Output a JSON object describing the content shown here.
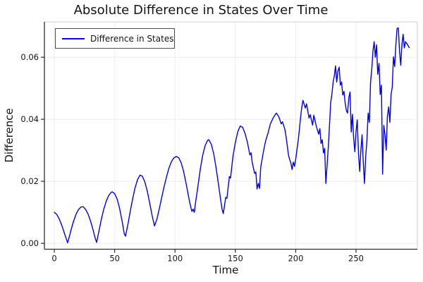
{
  "chart_data": {
    "type": "line",
    "title": "Absolute Difference in States Over Time",
    "xlabel": "Time",
    "ylabel": "Difference",
    "legend": {
      "position": "top-left",
      "label": "Difference in States"
    },
    "grid": true,
    "line_color": "#0000ee",
    "grid_color": "#ebebeb",
    "frame_color": "#cfcfcf",
    "spine_color": "#2e2e2e",
    "text_color": "#141414",
    "xlim": [
      -8.2,
      300.8
    ],
    "ylim": [
      -0.0019,
      0.0714
    ],
    "xticks": [
      0,
      50,
      100,
      150,
      200,
      250
    ],
    "xtick_labels": [
      "0",
      "50",
      "100",
      "150",
      "200",
      "250"
    ],
    "yticks": [
      0,
      0.02,
      0.04,
      0.06
    ],
    "ytick_labels": [
      "0.00",
      "0.02",
      "0.04",
      "0.06"
    ],
    "series": [
      {
        "name": "Difference in States",
        "points": [
          [
            0,
            0.01
          ],
          [
            2,
            0.0093
          ],
          [
            4,
            0.0079
          ],
          [
            6,
            0.006
          ],
          [
            8,
            0.0037
          ],
          [
            10,
            0.0013
          ],
          [
            11,
            0.0002
          ],
          [
            12,
            0.0015
          ],
          [
            14,
            0.0045
          ],
          [
            16,
            0.0072
          ],
          [
            18,
            0.0094
          ],
          [
            20,
            0.0109
          ],
          [
            22,
            0.0117
          ],
          [
            24,
            0.0118
          ],
          [
            26,
            0.0109
          ],
          [
            28,
            0.0094
          ],
          [
            30,
            0.0072
          ],
          [
            32,
            0.0045
          ],
          [
            34,
            0.0015
          ],
          [
            35,
            0.0003
          ],
          [
            37,
            0.004
          ],
          [
            39,
            0.0078
          ],
          [
            41,
            0.011
          ],
          [
            43,
            0.0136
          ],
          [
            45,
            0.0154
          ],
          [
            47,
            0.0164
          ],
          [
            48,
            0.0166
          ],
          [
            50,
            0.016
          ],
          [
            52,
            0.0143
          ],
          [
            54,
            0.0114
          ],
          [
            56,
            0.0075
          ],
          [
            58,
            0.003
          ],
          [
            59,
            0.0023
          ],
          [
            61,
            0.0062
          ],
          [
            63,
            0.0105
          ],
          [
            65,
            0.0145
          ],
          [
            67,
            0.018
          ],
          [
            69,
            0.0206
          ],
          [
            71,
            0.022
          ],
          [
            73,
            0.0216
          ],
          [
            75,
            0.0198
          ],
          [
            77,
            0.0168
          ],
          [
            79,
            0.013
          ],
          [
            81,
            0.009
          ],
          [
            83,
            0.0056
          ],
          [
            85,
            0.0078
          ],
          [
            87,
            0.0112
          ],
          [
            89,
            0.0148
          ],
          [
            91,
            0.0183
          ],
          [
            93,
            0.0215
          ],
          [
            95,
            0.0243
          ],
          [
            97,
            0.0263
          ],
          [
            99,
            0.0275
          ],
          [
            101,
            0.028
          ],
          [
            103,
            0.0276
          ],
          [
            105,
            0.0261
          ],
          [
            107,
            0.0234
          ],
          [
            109,
            0.0197
          ],
          [
            111,
            0.0155
          ],
          [
            112,
            0.0135
          ],
          [
            113,
            0.0118
          ],
          [
            114,
            0.0103
          ],
          [
            115,
            0.011
          ],
          [
            116,
            0.01
          ],
          [
            117,
            0.013
          ],
          [
            119,
            0.0185
          ],
          [
            121,
            0.024
          ],
          [
            123,
            0.0285
          ],
          [
            125,
            0.0315
          ],
          [
            127,
            0.0332
          ],
          [
            128,
            0.0334
          ],
          [
            130,
            0.032
          ],
          [
            132,
            0.029
          ],
          [
            134,
            0.0245
          ],
          [
            136,
            0.019
          ],
          [
            138,
            0.0135
          ],
          [
            139,
            0.011
          ],
          [
            140,
            0.0096
          ],
          [
            141,
            0.012
          ],
          [
            142,
            0.0148
          ],
          [
            143,
            0.0145
          ],
          [
            145,
            0.0215
          ],
          [
            146,
            0.021
          ],
          [
            148,
            0.028
          ],
          [
            150,
            0.0325
          ],
          [
            152,
            0.036
          ],
          [
            154,
            0.0378
          ],
          [
            156,
            0.0374
          ],
          [
            158,
            0.0355
          ],
          [
            160,
            0.0325
          ],
          [
            162,
            0.0285
          ],
          [
            163,
            0.0292
          ],
          [
            164,
            0.026
          ],
          [
            166,
            0.0225
          ],
          [
            167,
            0.023
          ],
          [
            168,
            0.0175
          ],
          [
            169,
            0.0193
          ],
          [
            170,
            0.0177
          ],
          [
            171,
            0.0245
          ],
          [
            173,
            0.029
          ],
          [
            175,
            0.0329
          ],
          [
            177,
            0.0355
          ],
          [
            179,
            0.0385
          ],
          [
            181,
            0.0402
          ],
          [
            183,
            0.0415
          ],
          [
            184,
            0.042
          ],
          [
            186,
            0.0408
          ],
          [
            188,
            0.0385
          ],
          [
            189,
            0.0392
          ],
          [
            191,
            0.0368
          ],
          [
            192,
            0.0345
          ],
          [
            194,
            0.0284
          ],
          [
            195,
            0.027
          ],
          [
            196,
            0.0258
          ],
          [
            197,
            0.0238
          ],
          [
            198,
            0.0262
          ],
          [
            199,
            0.0248
          ],
          [
            200,
            0.027
          ],
          [
            201,
            0.03
          ],
          [
            202,
            0.033
          ],
          [
            203,
            0.0365
          ],
          [
            204,
            0.0405
          ],
          [
            205,
            0.0438
          ],
          [
            206,
            0.0461
          ],
          [
            208,
            0.0436
          ],
          [
            209,
            0.045
          ],
          [
            211,
            0.0404
          ],
          [
            212,
            0.0415
          ],
          [
            214,
            0.0381
          ],
          [
            215,
            0.0413
          ],
          [
            217,
            0.0379
          ],
          [
            219,
            0.0352
          ],
          [
            220,
            0.037
          ],
          [
            221,
            0.0322
          ],
          [
            222,
            0.0334
          ],
          [
            223,
            0.0291
          ],
          [
            224,
            0.0306
          ],
          [
            225,
            0.0193
          ],
          [
            227,
            0.031
          ],
          [
            229,
            0.0455
          ],
          [
            230,
            0.0481
          ],
          [
            231,
            0.052
          ],
          [
            232,
            0.054
          ],
          [
            233,
            0.0572
          ],
          [
            234,
            0.052
          ],
          [
            235,
            0.0556
          ],
          [
            236,
            0.0568
          ],
          [
            237,
            0.051
          ],
          [
            238,
            0.052
          ],
          [
            239,
            0.0478
          ],
          [
            240,
            0.049
          ],
          [
            241,
            0.0452
          ],
          [
            242,
            0.0428
          ],
          [
            243,
            0.042
          ],
          [
            244,
            0.047
          ],
          [
            245,
            0.0488
          ],
          [
            246,
            0.0359
          ],
          [
            247,
            0.0416
          ],
          [
            248,
            0.034
          ],
          [
            249,
            0.0295
          ],
          [
            250,
            0.036
          ],
          [
            251,
            0.0398
          ],
          [
            252,
            0.029
          ],
          [
            253,
            0.0232
          ],
          [
            254,
            0.03
          ],
          [
            255,
            0.035
          ],
          [
            256,
            0.026
          ],
          [
            257,
            0.0193
          ],
          [
            258,
            0.028
          ],
          [
            259,
            0.033
          ],
          [
            260,
            0.042
          ],
          [
            261,
            0.039
          ],
          [
            262,
            0.052
          ],
          [
            263,
            0.056
          ],
          [
            264,
            0.062
          ],
          [
            265,
            0.065
          ],
          [
            266,
            0.06
          ],
          [
            267,
            0.064
          ],
          [
            268,
            0.0545
          ],
          [
            269,
            0.058
          ],
          [
            270,
            0.048
          ],
          [
            271,
            0.051
          ],
          [
            272,
            0.0223
          ],
          [
            273,
            0.038
          ],
          [
            274,
            0.035
          ],
          [
            275,
            0.03
          ],
          [
            276,
            0.041
          ],
          [
            277,
            0.044
          ],
          [
            278,
            0.039
          ],
          [
            279,
            0.048
          ],
          [
            280,
            0.0504
          ],
          [
            281,
            0.0601
          ],
          [
            282,
            0.057
          ],
          [
            283,
            0.064
          ],
          [
            284,
            0.0692
          ],
          [
            285,
            0.0695
          ],
          [
            286,
            0.062
          ],
          [
            287,
            0.0574
          ],
          [
            288,
            0.064
          ],
          [
            289,
            0.0674
          ],
          [
            290,
            0.063
          ],
          [
            291,
            0.065
          ],
          [
            292,
            0.0645
          ],
          [
            294,
            0.0631
          ]
        ]
      }
    ]
  }
}
